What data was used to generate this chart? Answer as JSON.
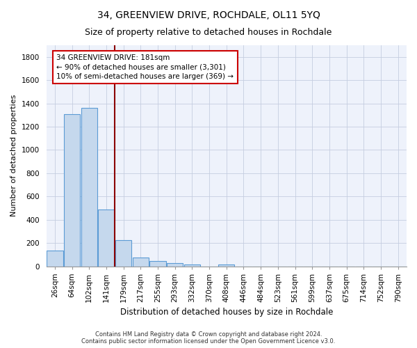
{
  "title": "34, GREENVIEW DRIVE, ROCHDALE, OL11 5YQ",
  "subtitle": "Size of property relative to detached houses in Rochdale",
  "xlabel": "Distribution of detached houses by size in Rochdale",
  "ylabel": "Number of detached properties",
  "footer_line1": "Contains HM Land Registry data © Crown copyright and database right 2024.",
  "footer_line2": "Contains public sector information licensed under the Open Government Licence v3.0.",
  "bar_labels": [
    "26sqm",
    "64sqm",
    "102sqm",
    "141sqm",
    "179sqm",
    "217sqm",
    "255sqm",
    "293sqm",
    "332sqm",
    "370sqm",
    "408sqm",
    "446sqm",
    "484sqm",
    "523sqm",
    "561sqm",
    "599sqm",
    "637sqm",
    "675sqm",
    "714sqm",
    "752sqm",
    "790sqm"
  ],
  "bar_values": [
    135,
    1305,
    1360,
    490,
    225,
    75,
    45,
    28,
    15,
    0,
    18,
    0,
    0,
    0,
    0,
    0,
    0,
    0,
    0,
    0,
    0
  ],
  "bar_color": "#c5d8ed",
  "bar_edge_color": "#5b9bd5",
  "vline_x": 3.5,
  "vline_color": "#8b0000",
  "annotation_box_text": "34 GREENVIEW DRIVE: 181sqm\n← 90% of detached houses are smaller (3,301)\n10% of semi-detached houses are larger (369) →",
  "ylim": [
    0,
    1900
  ],
  "yticks": [
    0,
    200,
    400,
    600,
    800,
    1000,
    1200,
    1400,
    1600,
    1800
  ],
  "bg_color": "#eef2fb",
  "grid_color": "#c5cde0",
  "title_fontsize": 10,
  "subtitle_fontsize": 9,
  "tick_fontsize": 7.5,
  "ylabel_fontsize": 8,
  "xlabel_fontsize": 8.5,
  "footer_fontsize": 6,
  "ann_fontsize": 7.5
}
